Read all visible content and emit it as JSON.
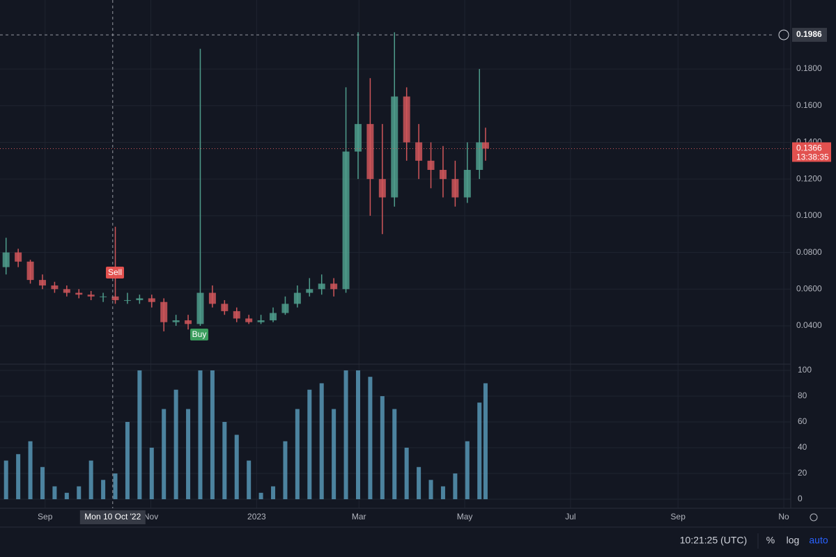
{
  "chart_data": {
    "type": "candlestick",
    "xlim": [
      0,
      456
    ],
    "xticks": [
      {
        "value": 26,
        "label": "Sep"
      },
      {
        "value": 87,
        "label": "Nov"
      },
      {
        "value": 148,
        "label": "2023"
      },
      {
        "value": 207,
        "label": "Mar"
      },
      {
        "value": 268,
        "label": "May"
      },
      {
        "value": 329,
        "label": "Jul"
      },
      {
        "value": 391,
        "label": "Sep"
      },
      {
        "value": 452,
        "label": "No"
      }
    ],
    "ylim": [
      0.0195,
      0.2176
    ],
    "yticks": [
      {
        "value": 0.04,
        "label": "0.0400"
      },
      {
        "value": 0.06,
        "label": "0.0600"
      },
      {
        "value": 0.08,
        "label": "0.0800"
      },
      {
        "value": 0.1,
        "label": "0.1000"
      },
      {
        "value": 0.12,
        "label": "0.1200"
      },
      {
        "value": 0.14,
        "label": "0.1400"
      },
      {
        "value": 0.16,
        "label": "0.1600"
      },
      {
        "value": 0.18,
        "label": "0.1800"
      }
    ],
    "up_color": "#4f9d8c",
    "down_color": "#d0565a",
    "x": [
      3.5,
      10.5,
      17.5,
      24.5,
      31.5,
      38.5,
      45.5,
      52.5,
      59.5,
      66.5,
      73.5,
      80.5,
      87.5,
      94.5,
      101.5,
      108.5,
      115.5,
      122.5,
      129.5,
      136.5,
      143.5,
      150.5,
      157.5,
      164.5,
      171.5,
      178.5,
      185.5,
      192.5,
      199.5,
      206.5,
      213.5,
      220.5,
      227.5,
      234.5,
      241.5,
      248.5,
      255.5,
      262.5,
      269.5,
      276.5,
      280
    ],
    "open": [
      0.072,
      0.08,
      0.075,
      0.065,
      0.062,
      0.06,
      0.058,
      0.057,
      0.056,
      0.056,
      0.054,
      0.054,
      0.055,
      0.053,
      0.042,
      0.043,
      0.041,
      0.058,
      0.052,
      0.048,
      0.044,
      0.042,
      0.043,
      0.047,
      0.052,
      0.058,
      0.06,
      0.063,
      0.06,
      0.135,
      0.15,
      0.12,
      0.11,
      0.165,
      0.14,
      0.13,
      0.125,
      0.12,
      0.11,
      0.125,
      0.14
    ],
    "high": [
      0.088,
      0.082,
      0.076,
      0.068,
      0.064,
      0.062,
      0.06,
      0.059,
      0.058,
      0.094,
      0.058,
      0.057,
      0.057,
      0.055,
      0.046,
      0.046,
      0.191,
      0.062,
      0.054,
      0.05,
      0.046,
      0.046,
      0.05,
      0.056,
      0.062,
      0.066,
      0.068,
      0.066,
      0.17,
      0.2,
      0.175,
      0.15,
      0.2,
      0.17,
      0.15,
      0.14,
      0.138,
      0.13,
      0.14,
      0.18,
      0.148
    ],
    "low": [
      0.068,
      0.072,
      0.063,
      0.06,
      0.058,
      0.056,
      0.055,
      0.054,
      0.053,
      0.052,
      0.052,
      0.052,
      0.05,
      0.037,
      0.04,
      0.038,
      0.04,
      0.05,
      0.046,
      0.042,
      0.041,
      0.041,
      0.042,
      0.046,
      0.05,
      0.056,
      0.057,
      0.056,
      0.058,
      0.12,
      0.1,
      0.09,
      0.105,
      0.13,
      0.12,
      0.115,
      0.11,
      0.105,
      0.107,
      0.12,
      0.13
    ],
    "close": [
      0.08,
      0.075,
      0.065,
      0.062,
      0.06,
      0.058,
      0.057,
      0.056,
      0.056,
      0.054,
      0.054,
      0.055,
      0.053,
      0.042,
      0.043,
      0.041,
      0.058,
      0.052,
      0.048,
      0.044,
      0.042,
      0.043,
      0.047,
      0.052,
      0.058,
      0.06,
      0.063,
      0.06,
      0.135,
      0.15,
      0.12,
      0.11,
      0.165,
      0.14,
      0.13,
      0.125,
      0.12,
      0.11,
      0.125,
      0.14,
      0.1366
    ],
    "current_price": {
      "value": 0.1366,
      "label": "0.1366"
    },
    "countdown": "13:38:35",
    "crosshair_price": {
      "value": 0.1986,
      "label": "0.1986"
    },
    "crosshair_date": {
      "value": 65,
      "label": "Mon 10 Oct '22"
    },
    "annotations": {
      "sell": "Sell",
      "buy": "Buy"
    },
    "indicator": {
      "color": "#5b9fbf",
      "ylim": [
        -4.3,
        104.3
      ],
      "yticks": [
        0,
        20,
        40,
        60,
        80,
        100
      ],
      "values": [
        30,
        35,
        45,
        25,
        10,
        5,
        10,
        30,
        15,
        20,
        60,
        100,
        40,
        70,
        85,
        70,
        100,
        100,
        60,
        50,
        30,
        5,
        10,
        45,
        70,
        85,
        90,
        70,
        100,
        100,
        95,
        80,
        70,
        40,
        25,
        15,
        10,
        20,
        45,
        75,
        90
      ]
    },
    "status_bar": {
      "time": "10:21:25 (UTC)",
      "percent": "%",
      "log": "log",
      "auto": "auto"
    }
  }
}
